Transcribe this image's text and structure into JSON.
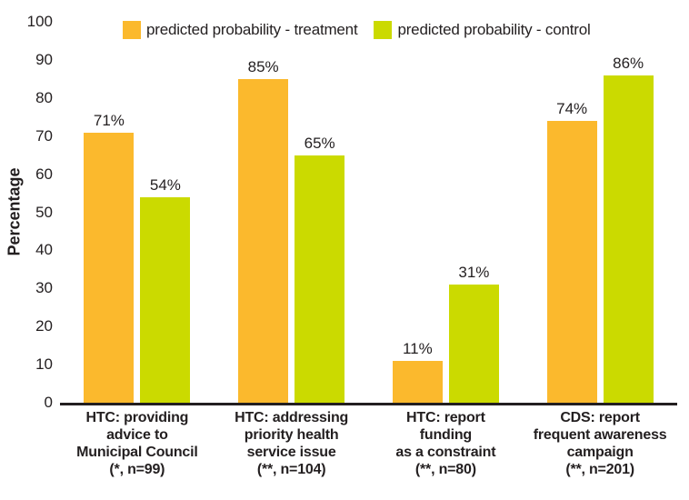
{
  "legend": {
    "items": [
      {
        "label": "predicted probability - treatment",
        "color": "#FBB92D"
      },
      {
        "label": "predicted probability - control",
        "color": "#CBDA00"
      }
    ]
  },
  "chart_data": {
    "type": "bar",
    "title": "",
    "xlabel": "",
    "ylabel": "Percentage",
    "ylim": [
      0,
      100
    ],
    "yticks": [
      0,
      10,
      20,
      30,
      40,
      50,
      60,
      70,
      80,
      90,
      100
    ],
    "grid": false,
    "legend_position": "top",
    "axis_color": "#231F20",
    "text_color": "#231F20",
    "categories": [
      "HTC: providing advice to Municipal Council (*, n=99)",
      "HTC: addressing priority health service issue (**, n=104)",
      "HTC: report funding as a constraint (**, n=80)",
      "CDS: report frequent awareness campaign (**, n=201)"
    ],
    "category_lines": [
      [
        "HTC: providing",
        "advice to",
        "Municipal Council",
        "(*, n=99)"
      ],
      [
        "HTC: addressing",
        "priority health",
        "service issue",
        "(**, n=104)"
      ],
      [
        "HTC: report",
        "funding",
        "as a constraint",
        "(**, n=80)"
      ],
      [
        "CDS: report",
        "frequent awareness",
        "campaign",
        "(**, n=201)"
      ]
    ],
    "series": [
      {
        "name": "predicted probability - treatment",
        "color": "#FBB92D",
        "values": [
          71,
          85,
          11,
          74
        ],
        "labels": [
          "71%",
          "85%",
          "11%",
          "74%"
        ]
      },
      {
        "name": "predicted probability - control",
        "color": "#CBDA00",
        "values": [
          54,
          65,
          31,
          86
        ],
        "labels": [
          "54%",
          "65%",
          "31%",
          "86%"
        ]
      }
    ]
  }
}
